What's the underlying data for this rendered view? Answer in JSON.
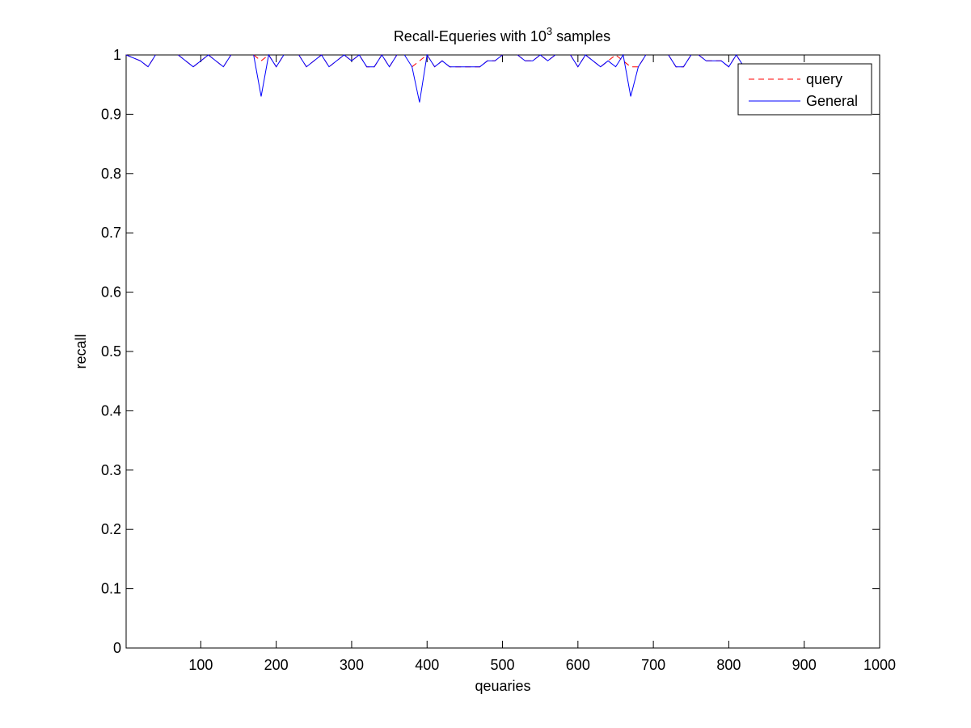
{
  "chart_data": {
    "type": "line",
    "title": "Recall-Equeries with 10",
    "title_superscript": "3",
    "title_suffix": " samples",
    "xlabel": "qeuaries",
    "ylabel": "recall",
    "xlim": [
      1,
      1000
    ],
    "ylim": [
      0,
      1
    ],
    "xticks": [
      100,
      200,
      300,
      400,
      500,
      600,
      700,
      800,
      900,
      1000
    ],
    "yticks": [
      0,
      0.1,
      0.2,
      0.3,
      0.4,
      0.5,
      0.6,
      0.7,
      0.8,
      0.9,
      1
    ],
    "xtick_labels": [
      "100",
      "200",
      "300",
      "400",
      "500",
      "600",
      "700",
      "800",
      "900",
      "1000"
    ],
    "ytick_labels": [
      "0",
      "0.1",
      "0.2",
      "0.3",
      "0.4",
      "0.5",
      "0.6",
      "0.7",
      "0.8",
      "0.9",
      "1"
    ],
    "grid": false,
    "legend_position": "top-right",
    "series": [
      {
        "name": "query",
        "color": "#ff0000",
        "style": "dashed",
        "segments": [
          [
            [
              1,
              1.0
            ],
            [
              20,
              0.99
            ],
            [
              30,
              0.98
            ],
            [
              40,
              1.0
            ]
          ],
          [
            [
              70,
              1.0
            ],
            [
              90,
              0.98
            ],
            [
              110,
              1.0
            ],
            [
              130,
              0.98
            ],
            [
              140,
              1.0
            ]
          ],
          [
            [
              170,
              1.0
            ],
            [
              180,
              0.99
            ],
            [
              190,
              1.0
            ],
            [
              200,
              0.98
            ],
            [
              210,
              1.0
            ]
          ],
          [
            [
              230,
              1.0
            ],
            [
              240,
              0.98
            ],
            [
              260,
              1.0
            ],
            [
              270,
              0.98
            ],
            [
              290,
              1.0
            ],
            [
              300,
              0.99
            ],
            [
              310,
              1.0
            ],
            [
              320,
              0.98
            ],
            [
              330,
              0.98
            ],
            [
              340,
              1.0
            ],
            [
              350,
              0.98
            ],
            [
              360,
              1.0
            ]
          ],
          [
            [
              380,
              0.98
            ],
            [
              390,
              0.99
            ],
            [
              400,
              1.0
            ],
            [
              410,
              0.98
            ],
            [
              420,
              0.99
            ],
            [
              430,
              0.98
            ],
            [
              470,
              0.98
            ],
            [
              480,
              0.99
            ],
            [
              490,
              0.99
            ],
            [
              500,
              1.0
            ]
          ],
          [
            [
              520,
              1.0
            ],
            [
              530,
              0.99
            ],
            [
              540,
              0.99
            ],
            [
              550,
              1.0
            ],
            [
              560,
              0.99
            ],
            [
              570,
              1.0
            ]
          ],
          [
            [
              590,
              1.0
            ],
            [
              600,
              0.98
            ],
            [
              610,
              1.0
            ],
            [
              630,
              0.98
            ],
            [
              640,
              0.99
            ],
            [
              650,
              1.0
            ],
            [
              660,
              0.99
            ],
            [
              670,
              0.98
            ],
            [
              680,
              0.98
            ],
            [
              690,
              1.0
            ]
          ],
          [
            [
              720,
              1.0
            ],
            [
              730,
              0.98
            ],
            [
              740,
              0.98
            ],
            [
              750,
              1.0
            ]
          ],
          [
            [
              760,
              1.0
            ],
            [
              770,
              0.99
            ],
            [
              790,
              0.99
            ],
            [
              800,
              0.98
            ],
            [
              810,
              1.0
            ],
            [
              820,
              0.98
            ]
          ]
        ]
      },
      {
        "name": "General",
        "color": "#0000ff",
        "style": "solid",
        "segments": [
          [
            [
              1,
              1.0
            ],
            [
              20,
              0.99
            ],
            [
              30,
              0.98
            ],
            [
              40,
              1.0
            ]
          ],
          [
            [
              70,
              1.0
            ],
            [
              90,
              0.98
            ],
            [
              110,
              1.0
            ],
            [
              130,
              0.98
            ],
            [
              140,
              1.0
            ]
          ],
          [
            [
              170,
              1.0
            ],
            [
              180,
              0.93
            ],
            [
              190,
              1.0
            ],
            [
              200,
              0.98
            ],
            [
              210,
              1.0
            ]
          ],
          [
            [
              230,
              1.0
            ],
            [
              240,
              0.98
            ],
            [
              260,
              1.0
            ],
            [
              270,
              0.98
            ],
            [
              290,
              1.0
            ],
            [
              300,
              0.99
            ],
            [
              310,
              1.0
            ],
            [
              320,
              0.98
            ],
            [
              330,
              0.98
            ],
            [
              340,
              1.0
            ],
            [
              350,
              0.98
            ],
            [
              360,
              1.0
            ]
          ],
          [
            [
              370,
              1.0
            ],
            [
              380,
              0.98
            ],
            [
              390,
              0.92
            ],
            [
              400,
              1.0
            ],
            [
              410,
              0.98
            ],
            [
              420,
              0.99
            ],
            [
              430,
              0.98
            ],
            [
              470,
              0.98
            ],
            [
              480,
              0.99
            ],
            [
              490,
              0.99
            ],
            [
              500,
              1.0
            ]
          ],
          [
            [
              520,
              1.0
            ],
            [
              530,
              0.99
            ],
            [
              540,
              0.99
            ],
            [
              550,
              1.0
            ],
            [
              560,
              0.99
            ],
            [
              570,
              1.0
            ]
          ],
          [
            [
              590,
              1.0
            ],
            [
              600,
              0.98
            ],
            [
              610,
              1.0
            ],
            [
              630,
              0.98
            ],
            [
              640,
              0.99
            ],
            [
              650,
              0.98
            ],
            [
              660,
              1.0
            ],
            [
              670,
              0.93
            ],
            [
              680,
              0.98
            ],
            [
              690,
              1.0
            ]
          ],
          [
            [
              720,
              1.0
            ],
            [
              730,
              0.98
            ],
            [
              740,
              0.98
            ],
            [
              750,
              1.0
            ]
          ],
          [
            [
              760,
              1.0
            ],
            [
              770,
              0.99
            ],
            [
              790,
              0.99
            ],
            [
              800,
              0.98
            ],
            [
              810,
              1.0
            ],
            [
              820,
              0.98
            ]
          ]
        ]
      }
    ]
  }
}
